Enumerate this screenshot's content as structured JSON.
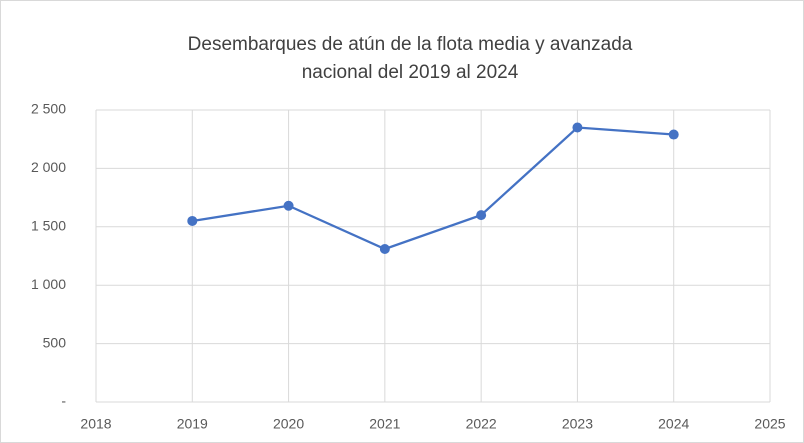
{
  "chart_data": {
    "type": "line",
    "title": [
      "Desembarques de atún de la flota  media y avanzada",
      "nacional del 2019 al 2024"
    ],
    "x": [
      2019,
      2020,
      2021,
      2022,
      2023,
      2024
    ],
    "series": [
      {
        "name": null,
        "color": "#4472c4",
        "values": [
          1550,
          1680,
          1310,
          1600,
          2350,
          2290
        ]
      }
    ],
    "xlim": [
      2018,
      2025
    ],
    "xticks": [
      2018,
      2019,
      2020,
      2021,
      2022,
      2023,
      2024,
      2025
    ],
    "ylim": [
      0,
      2500
    ],
    "yticks": [
      {
        "value": 0,
        "label": "-"
      },
      500,
      {
        "value": 1000,
        "label": "1 000"
      },
      {
        "value": 1500,
        "label": "1 500"
      },
      {
        "value": 2000,
        "label": "2 000"
      },
      {
        "value": 2500,
        "label": "2 500"
      }
    ],
    "grid": true
  }
}
